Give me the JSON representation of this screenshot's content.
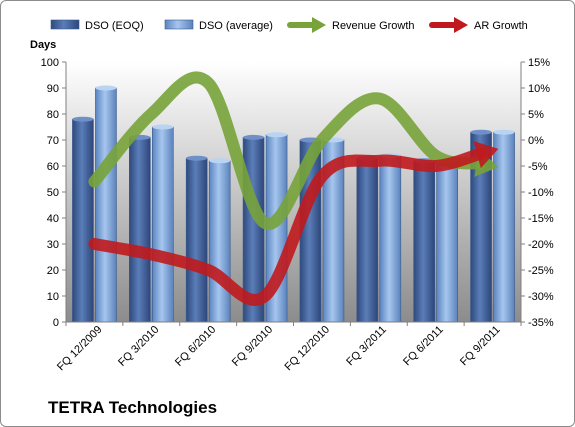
{
  "chart_data": {
    "type": "bar",
    "title": "",
    "footer_title": "TETRA Technologies",
    "left_axis": {
      "label": "Days",
      "ylim": [
        0,
        100
      ],
      "ticks": [
        "0",
        "10",
        "20",
        "30",
        "40",
        "50",
        "60",
        "70",
        "80",
        "90",
        "100"
      ]
    },
    "right_axis": {
      "label": "",
      "ylim": [
        -35,
        15
      ],
      "ticks": [
        "-35%",
        "-30%",
        "-25%",
        "-20%",
        "-15%",
        "-10%",
        "-5%",
        "0%",
        "5%",
        "10%",
        "15%"
      ]
    },
    "categories": [
      "FQ 12/2009",
      "FQ 3/2010",
      "FQ 6/2010",
      "FQ 9/2010",
      "FQ 12/2010",
      "FQ 3/2011",
      "FQ 6/2011",
      "FQ 9/2011"
    ],
    "bar_series": [
      {
        "name": "DSO (EOQ)",
        "axis": "left",
        "color": "#4f6fa8",
        "values": [
          78,
          71,
          63,
          71,
          70,
          63,
          62,
          73
        ]
      },
      {
        "name": "DSO (average)",
        "axis": "left",
        "color": "#8fb3e0",
        "values": [
          90,
          75,
          62,
          72,
          70,
          64,
          62,
          73
        ]
      }
    ],
    "line_series": [
      {
        "name": "Revenue Growth",
        "axis": "right",
        "color": "#77a33a",
        "values": [
          -8,
          5,
          11,
          -16,
          0,
          8,
          -3,
          -5
        ]
      },
      {
        "name": "AR Growth",
        "axis": "right",
        "color": "#c0191d",
        "values": [
          -20,
          -22,
          -25,
          -30,
          -7,
          -4,
          -5,
          -2
        ]
      }
    ],
    "legend_position": "top",
    "grid": false
  }
}
